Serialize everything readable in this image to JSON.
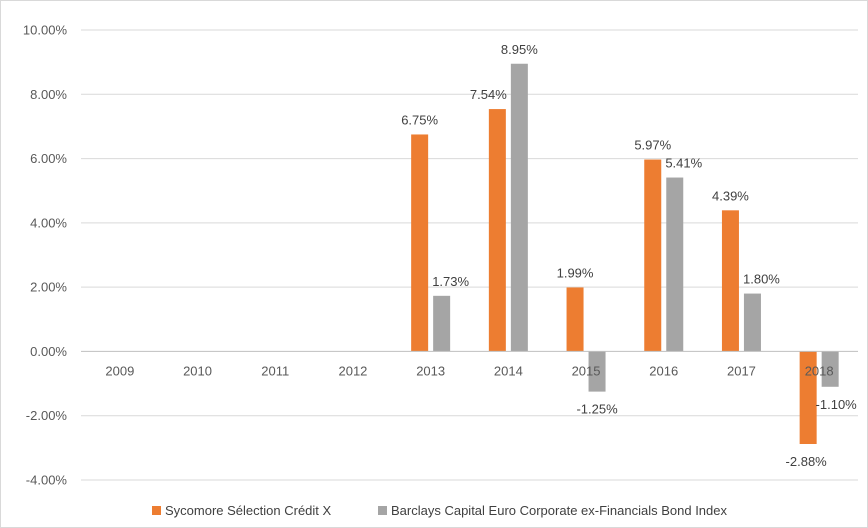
{
  "chart_data": {
    "type": "bar",
    "title": "",
    "xlabel": "",
    "ylabel": "",
    "categories": [
      "2009",
      "2010",
      "2011",
      "2012",
      "2013",
      "2014",
      "2015",
      "2016",
      "2017",
      "2018"
    ],
    "series": [
      {
        "name": "Sycomore Sélection Crédit X",
        "color": "#ED7D31",
        "values": [
          null,
          null,
          null,
          null,
          6.75,
          7.54,
          1.99,
          5.97,
          4.39,
          -2.88
        ],
        "labels": [
          "",
          "",
          "",
          "",
          "6.75%",
          "7.54%",
          "1.99%",
          "5.97%",
          "4.39%",
          "-2.88%"
        ]
      },
      {
        "name": "Barclays Capital Euro Corporate ex-Financials Bond Index",
        "color": "#A5A5A5",
        "values": [
          null,
          null,
          null,
          null,
          1.73,
          8.95,
          -1.25,
          5.41,
          1.8,
          -1.1
        ],
        "labels": [
          "",
          "",
          "",
          "",
          "1.73%",
          "8.95%",
          "-1.25%",
          "5.41%",
          "1.80%",
          "-1.10%"
        ]
      }
    ],
    "ylim": [
      -4,
      10
    ],
    "yticks": [
      10,
      8,
      6,
      4,
      2,
      0,
      -2,
      -4
    ],
    "ytick_labels": [
      "10.00%",
      "8.00%",
      "6.00%",
      "4.00%",
      "2.00%",
      "0.00%",
      "-2.00%",
      "-4.00%"
    ],
    "grid": true,
    "legend": "bottom"
  }
}
